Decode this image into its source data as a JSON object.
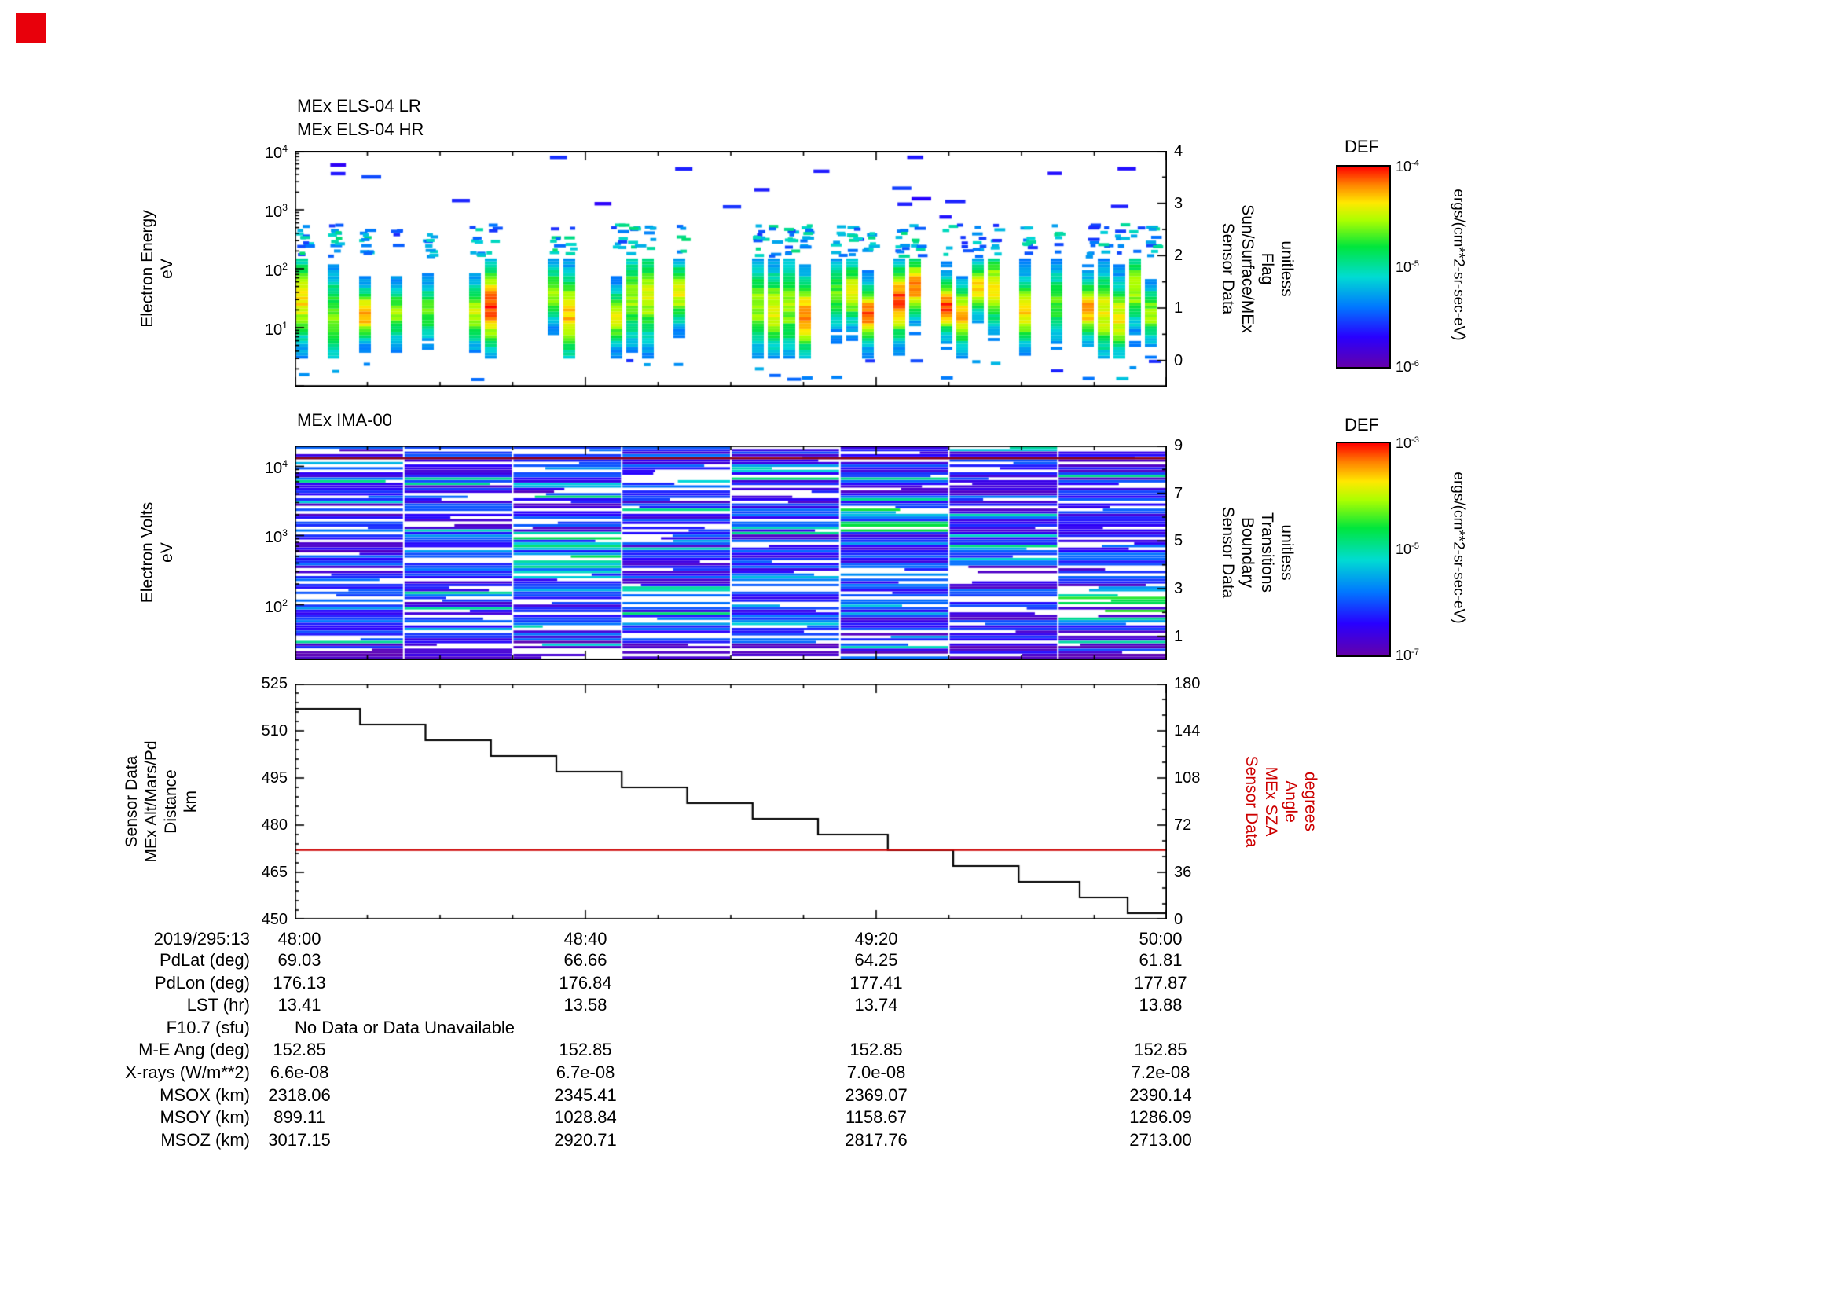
{
  "colors": {
    "axis": "#000000",
    "sza_line": "#cc0000",
    "alt_line": "#000000",
    "background": "#ffffff",
    "ima_marker_line": "#8b0016",
    "corner_marker": "#e8000b"
  },
  "els_panel": {
    "titles": [
      "MEx ELS-04 LR",
      "MEx ELS-04 HR"
    ],
    "ylabel": [
      "Electron Energy",
      "eV"
    ],
    "yticks": [
      "10^4",
      "10^3",
      "10^2",
      "10^1"
    ],
    "right_label": [
      "Sensor Data",
      "Sun/Surface/MEx",
      "Flag",
      "unitless"
    ],
    "right_ticks": [
      "4",
      "3",
      "2",
      "1",
      "0"
    ],
    "colorbar": {
      "title": "DEF",
      "ticks": [
        "10^-4",
        "10^-5",
        "10^-6"
      ],
      "unit": "ergs/(cm**2-sr-sec-eV)"
    }
  },
  "ima_panel": {
    "title": "MEx IMA-00",
    "ylabel": [
      "Electron Volts",
      "eV"
    ],
    "yticks": [
      "10^4",
      "10^3",
      "10^2"
    ],
    "right_label": [
      "Sensor Data",
      "Boundary",
      "Transitions",
      "unitless"
    ],
    "right_ticks": [
      "9",
      "7",
      "5",
      "3",
      "1"
    ],
    "colorbar": {
      "title": "DEF",
      "ticks": [
        "10^-3",
        "10^-5",
        "10^-7"
      ],
      "unit": "ergs/(cm**2-sr-sec-eV)"
    }
  },
  "alt_panel": {
    "ylabel": [
      "Sensor Data",
      "MEx Alt/Mars/Pd",
      "Distance",
      "km"
    ],
    "yticks": [
      "525",
      "510",
      "495",
      "480",
      "465",
      "450"
    ],
    "right_label": [
      "Sensor Data",
      "MEx SZA",
      "Angle",
      "degrees"
    ],
    "right_ticks": [
      "180",
      "144",
      "108",
      "72",
      "36",
      "0"
    ]
  },
  "xaxis": {
    "date_label": "2019/295:13",
    "ticks": [
      "48:00",
      "48:40",
      "49:20",
      "50:00"
    ]
  },
  "table": {
    "rows": [
      {
        "label": "PdLat (deg)",
        "values": [
          "69.03",
          "66.66",
          "64.25",
          "61.81"
        ]
      },
      {
        "label": "PdLon (deg)",
        "values": [
          "176.13",
          "176.84",
          "177.41",
          "177.87"
        ]
      },
      {
        "label": "LST (hr)",
        "values": [
          "13.41",
          "13.58",
          "13.74",
          "13.88"
        ]
      },
      {
        "label": "F10.7 (sfu)",
        "values": [],
        "note": "No Data or Data Unavailable"
      },
      {
        "label": "M-E Ang (deg)",
        "values": [
          "152.85",
          "152.85",
          "152.85",
          "152.85"
        ]
      },
      {
        "label": "X-rays (W/m**2)",
        "values": [
          "6.6e-08",
          "6.7e-08",
          "7.0e-08",
          "7.2e-08"
        ]
      },
      {
        "label": "MSOX (km)",
        "values": [
          "2318.06",
          "2345.41",
          "2369.07",
          "2390.14"
        ]
      },
      {
        "label": "MSOY (km)",
        "values": [
          "899.11",
          "1028.84",
          "1158.67",
          "1286.09"
        ]
      },
      {
        "label": "MSOZ (km)",
        "values": [
          "3017.15",
          "2920.71",
          "2817.76",
          "2713.00"
        ]
      }
    ]
  },
  "chart_data": [
    {
      "type": "heatmap",
      "title": "MEx ELS-04 LR / MEx ELS-04 HR",
      "xlabel": "Time 2019/295:13 (mm:ss), 48:00 to 50:00",
      "ylabel": "Electron Energy (eV)",
      "y_scale": "log",
      "y_range": [
        1,
        10000
      ],
      "value_label": "DEF ergs/(cm**2-sr-sec-eV)",
      "value_range": [
        1e-06,
        0.0001
      ],
      "right_axis": {
        "label": "Sensor Data Sun/Surface/MEx Flag (unitless)",
        "range": [
          0,
          4
        ]
      },
      "description": "Intermittent vertical bursts of electron flux separated by data gaps; intense red/yellow flux (~1e-4) concentrated between ~10 and ~100 eV, green/cyan dashes up to ~500 eV, sparse blue dashes from ~700 eV up to several keV."
    },
    {
      "type": "heatmap",
      "title": "MEx IMA-00",
      "xlabel": "Time 2019/295:13 (mm:ss), 48:00 to 50:00",
      "ylabel": "Electron Volts (eV)",
      "y_scale": "log",
      "y_range": [
        16,
        20000
      ],
      "value_label": "DEF ergs/(cm**2-sr-sec-eV)",
      "value_range": [
        1e-07,
        0.001
      ],
      "right_axis": {
        "label": "Sensor Data Boundary Transitions (unitless)",
        "range": [
          0,
          9
        ]
      },
      "description": "Eight dense time blocks of horizontal stripes spanning the full energy range, mostly blue/dark-blue/purple (~1e-7 to 1e-5) with scattered cyan-green patches and white dropout rows; thin dark-red horizontal marker line near the top of the panel."
    },
    {
      "type": "line",
      "title": "MEx altitude and solar zenith angle vs time",
      "x_ticks": [
        "48:00",
        "48:40",
        "49:20",
        "50:00"
      ],
      "left_axis": {
        "label": "Sensor Data MEx Alt/Mars/Pd Distance (km)",
        "range": [
          450,
          525
        ]
      },
      "right_axis": {
        "label": "Sensor Data MEx SZA Angle (degrees)",
        "range": [
          0,
          180
        ]
      },
      "series": [
        {
          "name": "MEx Alt/Mars/Pd Distance",
          "unit": "km",
          "color": "#000000",
          "axis": "left",
          "style": "steps",
          "step_x_frac": [
            0.0,
            0.075,
            0.15,
            0.225,
            0.3,
            0.375,
            0.45,
            0.525,
            0.6,
            0.68,
            0.755,
            0.83,
            0.9,
            0.955
          ],
          "step_values": [
            517,
            512,
            507,
            502,
            497,
            492,
            487,
            482,
            477,
            472,
            467,
            462,
            457,
            452
          ]
        },
        {
          "name": "MEx SZA Angle",
          "unit": "degrees",
          "color": "#cc0000",
          "axis": "right",
          "style": "line",
          "x_frac": [
            0,
            1
          ],
          "values": [
            53.0,
            53.0
          ]
        }
      ]
    }
  ]
}
